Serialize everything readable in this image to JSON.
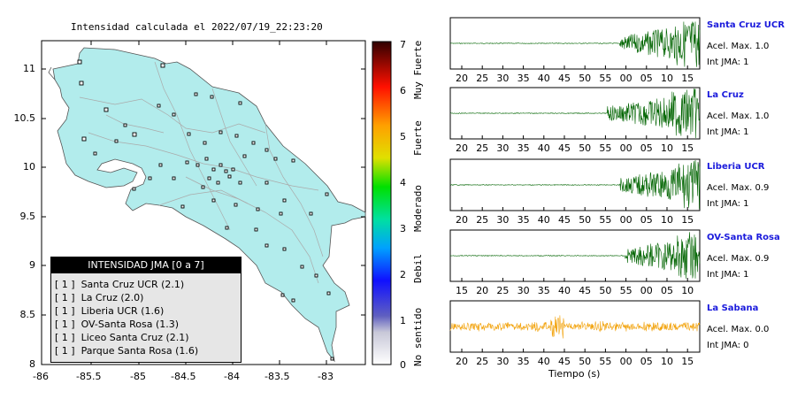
{
  "map": {
    "title": "Intensidad calculada el 2022/07/19_22:23:20",
    "y_ticks": [
      "11",
      "10.5",
      "10",
      "9.5",
      "9",
      "8.5",
      "8"
    ],
    "x_ticks": [
      "-86",
      "-85.5",
      "-85",
      "-84.5",
      "-84",
      "-83.5",
      "-83"
    ],
    "land_color": "#b2ecec"
  },
  "colorbar": {
    "ticks": [
      "7",
      "6",
      "5",
      "4",
      "3",
      "2",
      "1",
      "0"
    ],
    "category_labels": [
      "Muy Fuerte",
      "Fuerte",
      "Moderado",
      "Debil",
      "No sentido"
    ]
  },
  "legend": {
    "title": "INTENSIDAD JMA [0 a 7]",
    "rows": [
      "[ 1 ]  Santa Cruz UCR (2.1)",
      "[ 1 ]  La Cruz (2.0)",
      "[ 1 ]  Liberia UCR (1.6)",
      "[ 1 ]  OV-Santa Rosa (1.3)",
      "[ 1 ]  Liceo Santa Cruz (2.1)",
      "[ 1 ]  Parque Santa Rosa (1.6)"
    ]
  },
  "traces": [
    {
      "name": "Santa Cruz UCR",
      "accel": "Acel. Max. 1.0",
      "jma": "Int JMA: 1",
      "color": "#006400",
      "ticks": [
        "20",
        "25",
        "30",
        "35",
        "40",
        "45",
        "50",
        "55",
        "00",
        "05",
        "10",
        "15"
      ]
    },
    {
      "name": "La Cruz",
      "accel": "Acel. Max. 1.0",
      "jma": "Int JMA: 1",
      "color": "#006400",
      "ticks": [
        "20",
        "25",
        "30",
        "35",
        "40",
        "45",
        "50",
        "55",
        "00",
        "05",
        "10",
        "15"
      ]
    },
    {
      "name": "Liberia UCR",
      "accel": "Acel. Max. 0.9",
      "jma": "Int JMA: 1",
      "color": "#006400",
      "ticks": [
        "20",
        "25",
        "30",
        "35",
        "40",
        "45",
        "50",
        "55",
        "00",
        "05",
        "10",
        "15"
      ]
    },
    {
      "name": "OV-Santa Rosa",
      "accel": "Acel. Max. 0.9",
      "jma": "Int JMA: 1",
      "color": "#006400",
      "ticks": [
        "15",
        "20",
        "25",
        "30",
        "35",
        "40",
        "45",
        "50",
        "55",
        "00",
        "05",
        "10"
      ]
    },
    {
      "name": "La Sabana",
      "accel": "Acel. Max. 0.0",
      "jma": "Int JMA: 0",
      "color": "#f2a20a",
      "ticks": [
        "20",
        "25",
        "30",
        "35",
        "40",
        "45",
        "50",
        "55",
        "00",
        "05",
        "10",
        "15"
      ]
    }
  ],
  "xaxis_label": "Tiempo (s)"
}
